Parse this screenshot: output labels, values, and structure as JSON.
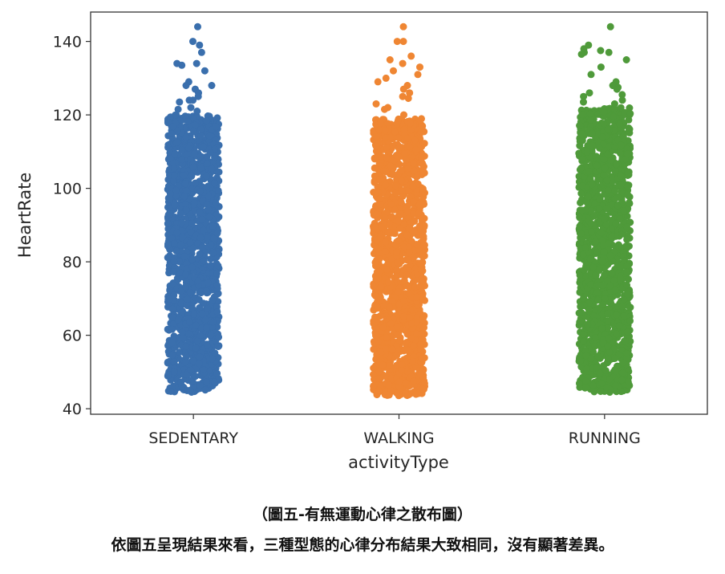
{
  "chart_data": {
    "type": "scatter",
    "subtype": "stripplot",
    "title": "",
    "xlabel": "activityType",
    "ylabel": "HeartRate",
    "categories": [
      "SEDENTARY",
      "WALKING",
      "RUNNING"
    ],
    "ylim": [
      38.5,
      148
    ],
    "yticks": [
      40,
      60,
      80,
      100,
      120,
      140
    ],
    "series": [
      {
        "name": "SEDENTARY",
        "color": "#3a6fad",
        "dense_min": 44.5,
        "dense_max": 120,
        "outliers": [
          144,
          140,
          139,
          137,
          134,
          133.5,
          134,
          132,
          129,
          128,
          128,
          127,
          126,
          125,
          124,
          124,
          123.5,
          122,
          121.5,
          121
        ]
      },
      {
        "name": "WALKING",
        "color": "#ef8633",
        "dense_min": 43.5,
        "dense_max": 119,
        "outliers": [
          144,
          140,
          140,
          136,
          135,
          134,
          133,
          132,
          131,
          130,
          129,
          128,
          127,
          126,
          125,
          124.5,
          123,
          122,
          121.5,
          120
        ]
      },
      {
        "name": "RUNNING",
        "color": "#4f9a3a",
        "dense_min": 44.5,
        "dense_max": 122,
        "outliers": [
          144,
          139,
          138,
          137.5,
          137,
          137,
          136.5,
          135,
          133,
          131,
          129,
          128,
          127.5,
          127,
          126,
          125.5,
          125,
          124,
          123.5,
          123
        ]
      }
    ]
  },
  "caption": {
    "title": "（圖五-有無運動心律之散布圖）",
    "text": "依圖五呈現結果來看，三種型態的心律分布結果大致相同，沒有顯著差異。"
  }
}
